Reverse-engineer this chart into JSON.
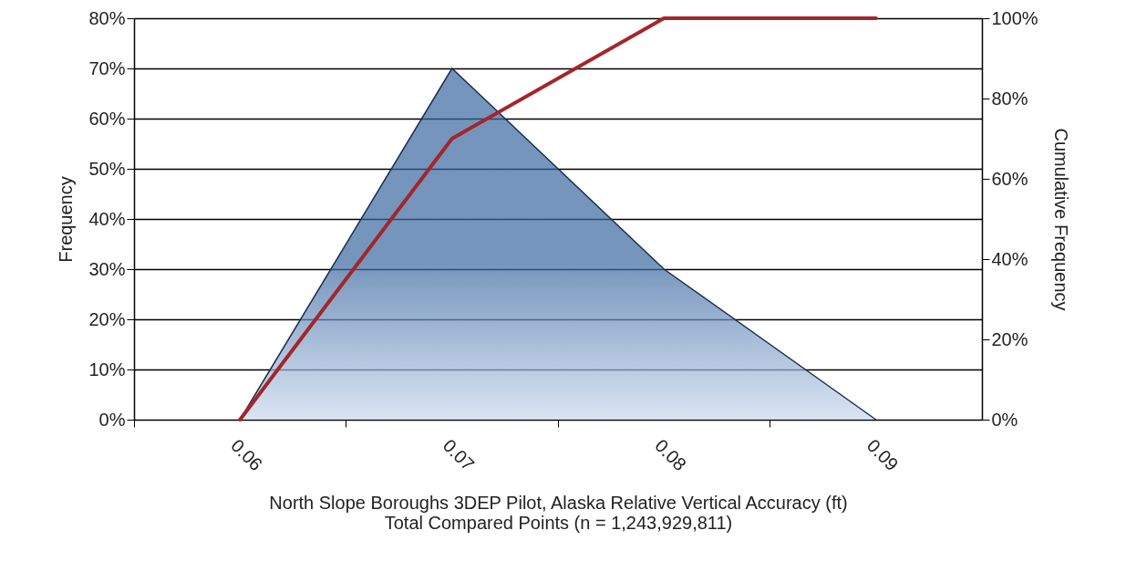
{
  "chart_data": {
    "type": "area",
    "xlabel": "North Slope Boroughs 3DEP Pilot, Alaska Relative Vertical Accuracy (ft)",
    "ylabel": "Frequency",
    "y2label": "Cumulative Frequency",
    "annotations": [
      "Total Compared Points (n = 1,243,929,811)"
    ],
    "categories": [
      "0.06",
      "0.07",
      "0.08",
      "0.09"
    ],
    "series": [
      {
        "color": "#3a67a0",
        "values": [
          0,
          70,
          30,
          0
        ]
      },
      {
        "type": "line",
        "axis": "y2",
        "color": "#a3262b",
        "values": [
          0,
          70,
          100,
          100
        ]
      }
    ],
    "ylim": [
      0,
      80
    ],
    "yticks": [
      {
        "value": 0,
        "label": "0%"
      },
      {
        "value": 10,
        "label": "10%"
      },
      {
        "value": 20,
        "label": "20%"
      },
      {
        "value": 30,
        "label": "30%"
      },
      {
        "value": 40,
        "label": "40%"
      },
      {
        "value": 50,
        "label": "50%"
      },
      {
        "value": 60,
        "label": "60%"
      },
      {
        "value": 70,
        "label": "70%"
      },
      {
        "value": 80,
        "label": "80%"
      }
    ],
    "y2lim": [
      0,
      100
    ],
    "y2ticks": [
      {
        "value": 0,
        "label": "0%"
      },
      {
        "value": 20,
        "label": "20%"
      },
      {
        "value": 40,
        "label": "40%"
      },
      {
        "value": 60,
        "label": "60%"
      },
      {
        "value": 80,
        "label": "80%"
      },
      {
        "value": 100,
        "label": "100%"
      }
    ],
    "grid": "y",
    "marker": "none",
    "line_style": "solid"
  }
}
